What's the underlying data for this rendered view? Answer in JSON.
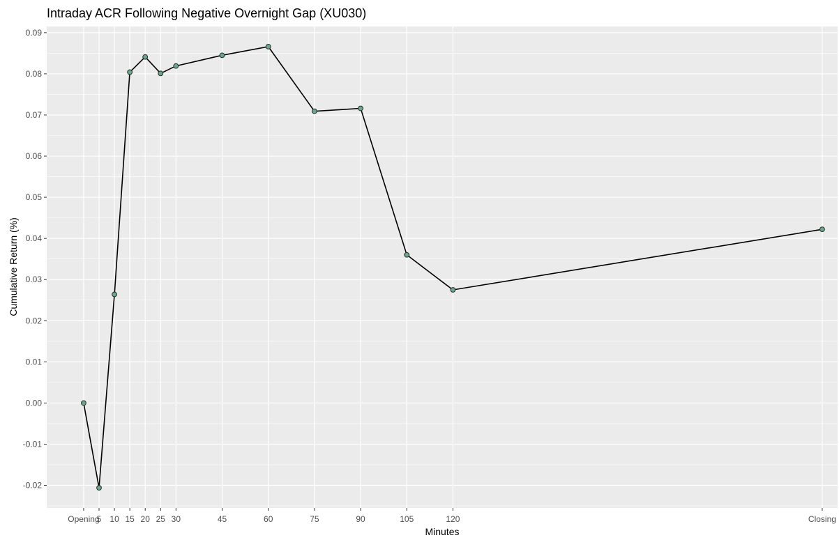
{
  "chart_data": {
    "type": "line",
    "title": "Intraday ACR Following Negative Overnight Gap (XU030)",
    "xlabel": "Minutes",
    "ylabel": "Cumulative Return (%)",
    "x_positions": [
      0,
      5,
      10,
      15,
      20,
      25,
      30,
      45,
      60,
      75,
      90,
      105,
      120,
      240
    ],
    "x_tick_labels": [
      "Opening",
      "5",
      "10",
      "15",
      "20",
      "25",
      "30",
      "45",
      "60",
      "75",
      "90",
      "105",
      "120",
      "Closing"
    ],
    "values": [
      0.0,
      -0.0206,
      0.0264,
      0.0804,
      0.0841,
      0.0801,
      0.0819,
      0.0845,
      0.0866,
      0.0709,
      0.0716,
      0.036,
      0.0275,
      0.0422
    ],
    "y_ticks": [
      -0.02,
      -0.01,
      0.0,
      0.01,
      0.02,
      0.03,
      0.04,
      0.05,
      0.06,
      0.07,
      0.08,
      0.09
    ],
    "y_tick_labels": [
      "-0.02",
      "-0.01",
      "0.00",
      "0.01",
      "0.02",
      "0.03",
      "0.04",
      "0.05",
      "0.06",
      "0.07",
      "0.08",
      "0.09"
    ],
    "xlim": [
      -12,
      245
    ],
    "ylim": [
      -0.0255,
      0.0915
    ],
    "grid": true,
    "colors": {
      "panel": "#ebebeb",
      "grid": "#ffffff",
      "line": "#000000",
      "point_fill": "#6fa58c",
      "point_stroke": "#1f2f27"
    }
  }
}
